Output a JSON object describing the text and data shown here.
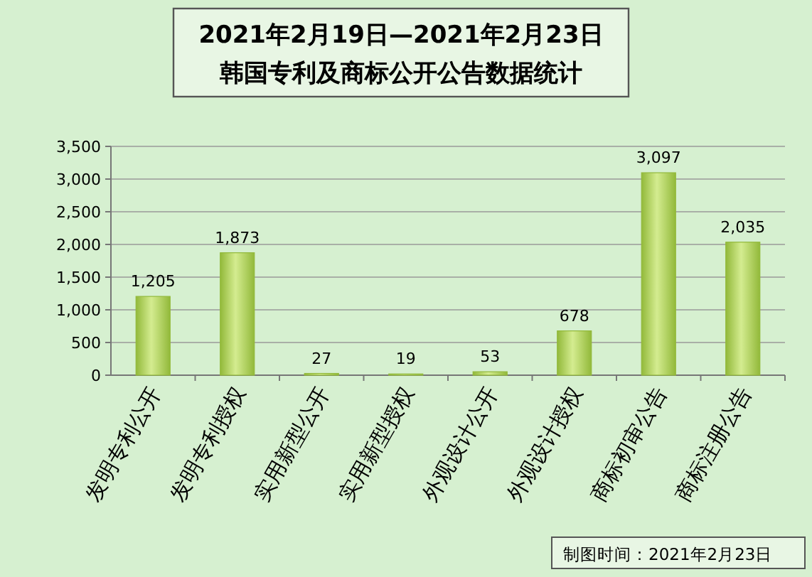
{
  "chart_data": {
    "type": "bar",
    "title": "2021年2月19日—2021年2月23日",
    "subtitle": "韩国专利及商标公开公告数据统计",
    "categories": [
      "发明专利公开",
      "发明专利授权",
      "实用新型公开",
      "实用新型授权",
      "外观设计公开",
      "外观设计授权",
      "商标初审公告",
      "商标注册公告"
    ],
    "values": [
      1205,
      1873,
      27,
      19,
      53,
      678,
      3097,
      2035
    ],
    "value_labels": [
      "1,205",
      "1,873",
      "27",
      "19",
      "53",
      "678",
      "3,097",
      "2,035"
    ],
    "color": "#92b93a",
    "ylim": [
      0,
      3500
    ],
    "yticks": [
      {
        "value": 0,
        "label": "0"
      },
      {
        "value": 500,
        "label": "500"
      },
      {
        "value": 1000,
        "label": "1,000"
      },
      {
        "value": 1500,
        "label": "1,500"
      },
      {
        "value": 2000,
        "label": "2,000"
      },
      {
        "value": 2500,
        "label": "2,500"
      },
      {
        "value": 3000,
        "label": "3,000"
      },
      {
        "value": 3500,
        "label": "3,500"
      }
    ],
    "grid": "y",
    "annotations": [
      "制图时间：2021年2月23日"
    ]
  }
}
